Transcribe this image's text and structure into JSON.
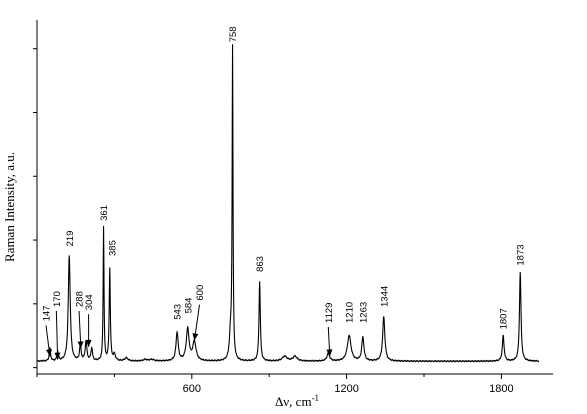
{
  "chart_data": {
    "type": "line",
    "title": "",
    "xlabel_main": "Δν, cm",
    "xlabel_sup": "-1",
    "ylabel": "Raman Intensity, a.u.",
    "xlim": [
      0,
      2000
    ],
    "ylim": [
      -0.02,
      1.09
    ],
    "x_ticks": [
      600,
      1200,
      1800
    ],
    "x_tick_labels": [
      "600",
      "1200",
      "1800"
    ],
    "y_ticks_unlabeled": [
      0,
      0.2,
      0.4,
      0.6,
      0.8,
      1.0
    ],
    "grid": false,
    "line_color": "#000000",
    "baseline": 0.02,
    "peaks": [
      {
        "center": 50,
        "height": 0.04,
        "width": 6
      },
      {
        "center": 80,
        "height": 0.03,
        "width": 6
      },
      {
        "center": 125,
        "height": 0.33,
        "width": 9
      },
      {
        "center": 168,
        "height": 0.05,
        "width": 7
      },
      {
        "center": 190,
        "height": 0.06,
        "width": 8
      },
      {
        "center": 212,
        "height": 0.04,
        "width": 7
      },
      {
        "center": 258,
        "height": 0.42,
        "width": 4
      },
      {
        "center": 282,
        "height": 0.29,
        "width": 5
      },
      {
        "center": 300,
        "height": 0.02,
        "width": 10
      },
      {
        "center": 346,
        "height": 0.01,
        "width": 15
      },
      {
        "center": 420,
        "height": 0.005,
        "width": 18
      },
      {
        "center": 445,
        "height": 0.005,
        "width": 20
      },
      {
        "center": 543,
        "height": 0.09,
        "width": 10
      },
      {
        "center": 584,
        "height": 0.1,
        "width": 13
      },
      {
        "center": 610,
        "height": 0.06,
        "width": 15
      },
      {
        "center": 758,
        "height": 0.97,
        "width": 4
      },
      {
        "center": 750,
        "height": 0.08,
        "width": 10
      },
      {
        "center": 863,
        "height": 0.25,
        "width": 6
      },
      {
        "center": 960,
        "height": 0.015,
        "width": 22
      },
      {
        "center": 1000,
        "height": 0.015,
        "width": 20
      },
      {
        "center": 1129,
        "height": 0.025,
        "width": 12
      },
      {
        "center": 1210,
        "height": 0.08,
        "width": 17
      },
      {
        "center": 1263,
        "height": 0.075,
        "width": 10
      },
      {
        "center": 1344,
        "height": 0.14,
        "width": 10
      },
      {
        "center": 1807,
        "height": 0.08,
        "width": 8
      },
      {
        "center": 1873,
        "height": 0.28,
        "width": 7
      }
    ],
    "annotations": [
      {
        "text": "147",
        "x": 35,
        "y": 0.145,
        "arrow": true,
        "arrow_to": [
          50,
          0.035
        ]
      },
      {
        "text": "170",
        "x": 75,
        "y": 0.19,
        "arrow": true,
        "arrow_to": [
          80,
          0.025
        ]
      },
      {
        "text": "219",
        "x": 125,
        "y": 0.38,
        "arrow": false
      },
      {
        "text": "288",
        "x": 163,
        "y": 0.19,
        "arrow": true,
        "arrow_to": [
          170,
          0.06
        ]
      },
      {
        "text": "304",
        "x": 200,
        "y": 0.18,
        "arrow": true,
        "arrow_to": [
          200,
          0.065
        ]
      },
      {
        "text": "361",
        "x": 258,
        "y": 0.46,
        "arrow": false
      },
      {
        "text": "385",
        "x": 291,
        "y": 0.35,
        "arrow": false
      },
      {
        "text": "543",
        "x": 543,
        "y": 0.15,
        "arrow": false
      },
      {
        "text": "584",
        "x": 586,
        "y": 0.17,
        "arrow": false
      },
      {
        "text": "600",
        "x": 630,
        "y": 0.21,
        "arrow": true,
        "arrow_to": [
          610,
          0.085
        ]
      },
      {
        "text": "758",
        "x": 758,
        "y": 1.02,
        "arrow": false
      },
      {
        "text": "863",
        "x": 863,
        "y": 0.3,
        "arrow": false
      },
      {
        "text": "1129",
        "x": 1129,
        "y": 0.14,
        "arrow": true,
        "arrow_to": [
          1135,
          0.035
        ]
      },
      {
        "text": "1210",
        "x": 1210,
        "y": 0.14,
        "arrow": false
      },
      {
        "text": "1263",
        "x": 1263,
        "y": 0.14,
        "arrow": false
      },
      {
        "text": "1344",
        "x": 1344,
        "y": 0.19,
        "arrow": false
      },
      {
        "text": "1807",
        "x": 1807,
        "y": 0.12,
        "arrow": false
      },
      {
        "text": "1873",
        "x": 1873,
        "y": 0.32,
        "arrow": false
      }
    ]
  }
}
